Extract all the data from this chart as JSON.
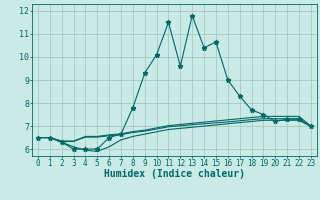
{
  "bg_color": "#caeae5",
  "grid_color": "#a8c8c4",
  "line_color": "#006868",
  "xlabel": "Humidex (Indice chaleur)",
  "lines": [
    {
      "x": [
        0,
        1,
        2,
        3,
        4,
        5,
        6,
        7,
        8,
        9,
        10,
        11,
        12,
        13,
        14,
        15,
        16,
        17,
        18,
        19,
        20,
        21,
        22,
        23
      ],
      "y": [
        6.5,
        6.5,
        6.3,
        6.0,
        6.0,
        6.0,
        6.5,
        6.65,
        7.8,
        9.3,
        10.1,
        11.5,
        9.6,
        11.8,
        10.4,
        10.65,
        9.0,
        8.3,
        7.7,
        7.5,
        7.2,
        7.3,
        7.3,
        7.0
      ],
      "marker": "*",
      "ms": 3.5
    },
    {
      "x": [
        0,
        1,
        2,
        3,
        4,
        5,
        6,
        7,
        8,
        9,
        10,
        11,
        12,
        13,
        14,
        15,
        16,
        17,
        18,
        19,
        20,
        21,
        22,
        23
      ],
      "y": [
        6.5,
        6.5,
        6.35,
        6.35,
        6.55,
        6.55,
        6.62,
        6.66,
        6.76,
        6.82,
        6.92,
        7.02,
        7.07,
        7.12,
        7.17,
        7.22,
        7.27,
        7.32,
        7.37,
        7.42,
        7.42,
        7.42,
        7.42,
        7.0
      ],
      "marker": "None",
      "ms": 0
    },
    {
      "x": [
        0,
        1,
        2,
        3,
        4,
        5,
        6,
        7,
        8,
        9,
        10,
        11,
        12,
        13,
        14,
        15,
        16,
        17,
        18,
        19,
        20,
        21,
        22,
        23
      ],
      "y": [
        6.5,
        6.5,
        6.33,
        6.33,
        6.52,
        6.52,
        6.58,
        6.63,
        6.72,
        6.78,
        6.87,
        6.97,
        7.01,
        7.06,
        7.1,
        7.14,
        7.18,
        7.23,
        7.28,
        7.32,
        7.32,
        7.32,
        7.32,
        6.98
      ],
      "marker": "None",
      "ms": 0
    },
    {
      "x": [
        0,
        1,
        2,
        3,
        4,
        5,
        6,
        7,
        8,
        9,
        10,
        11,
        12,
        13,
        14,
        15,
        16,
        17,
        18,
        19,
        20,
        21,
        22,
        23
      ],
      "y": [
        6.5,
        6.5,
        6.3,
        6.1,
        5.95,
        5.9,
        6.1,
        6.4,
        6.55,
        6.65,
        6.75,
        6.85,
        6.9,
        6.95,
        7.0,
        7.05,
        7.1,
        7.15,
        7.2,
        7.25,
        7.25,
        7.25,
        7.25,
        6.98
      ],
      "marker": "None",
      "ms": 0
    }
  ],
  "xlim": [
    -0.5,
    23.5
  ],
  "ylim": [
    5.7,
    12.3
  ],
  "xticks": [
    0,
    1,
    2,
    3,
    4,
    5,
    6,
    7,
    8,
    9,
    10,
    11,
    12,
    13,
    14,
    15,
    16,
    17,
    18,
    19,
    20,
    21,
    22,
    23
  ],
  "yticks": [
    6,
    7,
    8,
    9,
    10,
    11,
    12
  ],
  "tick_fontsize": 5.5,
  "xlabel_fontsize": 7.0
}
